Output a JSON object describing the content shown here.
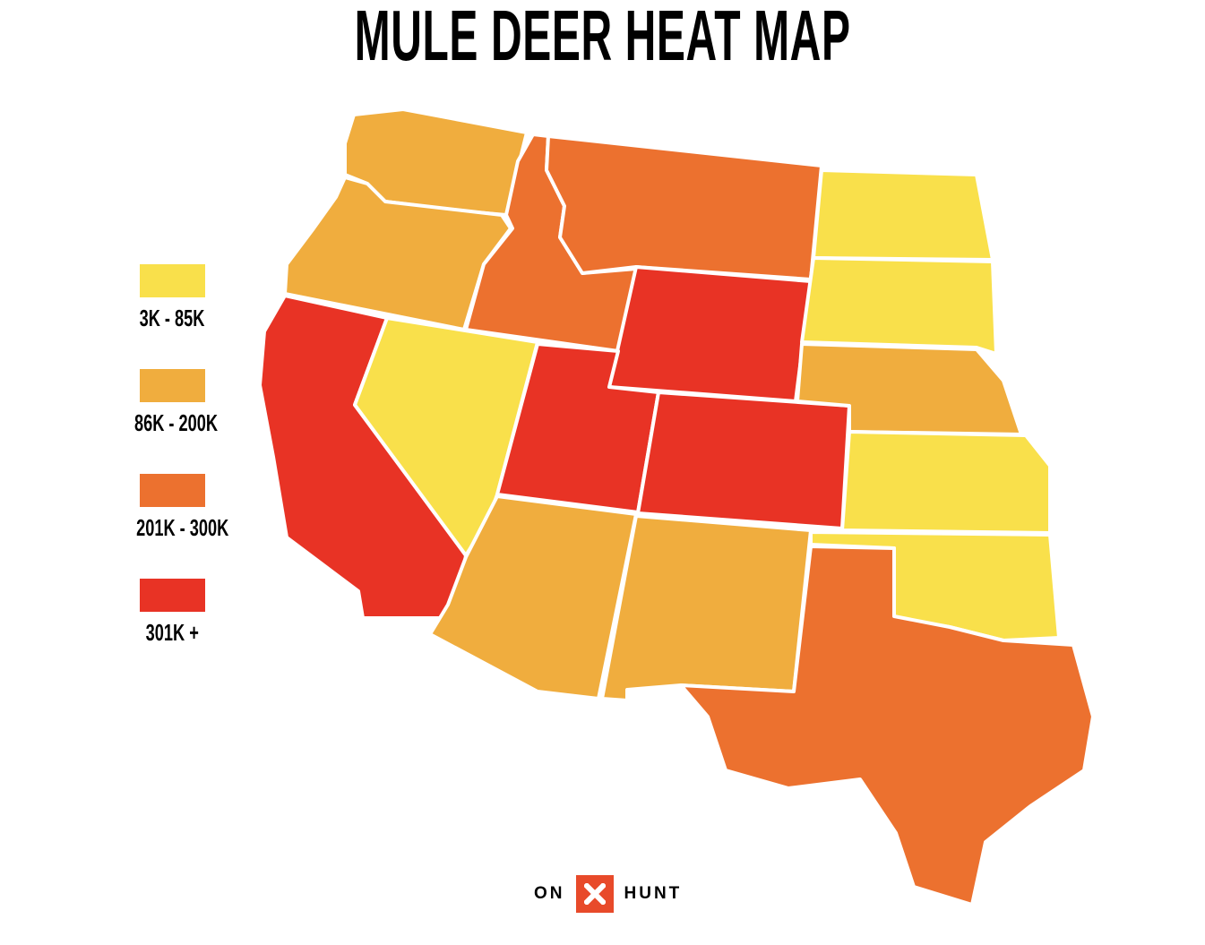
{
  "title": "MULE DEER HEAT MAP",
  "legend": [
    {
      "label": "3K - 85K",
      "color": "#F9E04B"
    },
    {
      "label": "86K - 200K",
      "color": "#F0AD3E"
    },
    {
      "label": "201K - 300K",
      "color": "#EC712F"
    },
    {
      "label": "301K +",
      "color": "#E83325"
    }
  ],
  "states": [
    {
      "name": "Washington",
      "class": 1
    },
    {
      "name": "Oregon",
      "class": 1
    },
    {
      "name": "California",
      "class": 3
    },
    {
      "name": "Nevada",
      "class": 0
    },
    {
      "name": "Idaho",
      "class": 2
    },
    {
      "name": "Montana",
      "class": 2
    },
    {
      "name": "Wyoming",
      "class": 3
    },
    {
      "name": "Utah",
      "class": 3
    },
    {
      "name": "Colorado",
      "class": 3
    },
    {
      "name": "Arizona",
      "class": 1
    },
    {
      "name": "New Mexico",
      "class": 1
    },
    {
      "name": "North Dakota",
      "class": 0
    },
    {
      "name": "South Dakota",
      "class": 0
    },
    {
      "name": "Nebraska",
      "class": 1
    },
    {
      "name": "Kansas",
      "class": 0
    },
    {
      "name": "Oklahoma",
      "class": 0
    },
    {
      "name": "Texas",
      "class": 2
    }
  ],
  "logo": {
    "left": "ON",
    "right": "HUNT",
    "mark": "✕"
  }
}
